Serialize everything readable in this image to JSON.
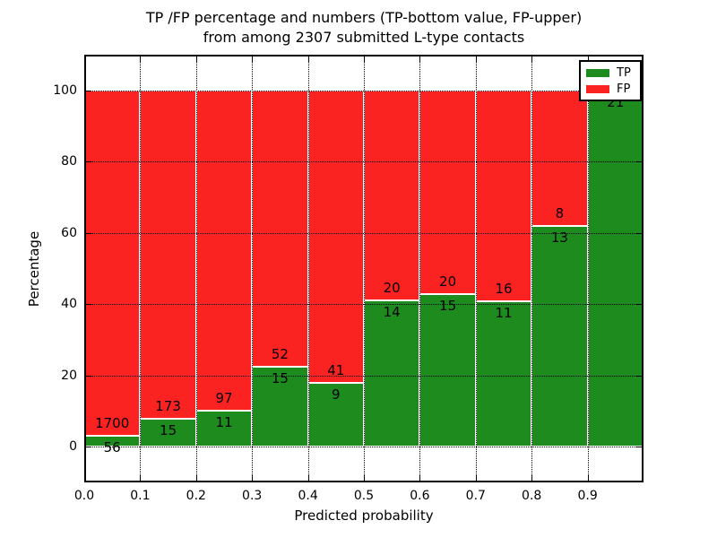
{
  "chart_data": {
    "type": "bar",
    "stacked": true,
    "title_line1": "TP /FP percentage and numbers (TP-bottom value, FP-upper)",
    "title_line2": "from among 2307 submitted L-type contacts",
    "xlabel": "Predicted probability",
    "ylabel": "Percentage",
    "total_contacts": 2307,
    "xlim": [
      0.0,
      1.0
    ],
    "ylim": [
      -10,
      110
    ],
    "grid": "dotted black, horizontal at y ticks and vertical at x ticks, drawn above bars",
    "x_ticks": [
      {
        "label": "0.0",
        "value": 0.0
      },
      {
        "label": "0.1",
        "value": 0.1
      },
      {
        "label": "0.2",
        "value": 0.2
      },
      {
        "label": "0.3",
        "value": 0.3
      },
      {
        "label": "0.4",
        "value": 0.4
      },
      {
        "label": "0.5",
        "value": 0.5
      },
      {
        "label": "0.6",
        "value": 0.6
      },
      {
        "label": "0.7",
        "value": 0.7
      },
      {
        "label": "0.8",
        "value": 0.8
      },
      {
        "label": "0.9",
        "value": 0.9
      }
    ],
    "y_ticks": [
      {
        "label": "0",
        "value": 0
      },
      {
        "label": "20",
        "value": 20
      },
      {
        "label": "40",
        "value": 40
      },
      {
        "label": "60",
        "value": 60
      },
      {
        "label": "80",
        "value": 80
      },
      {
        "label": "100",
        "value": 100
      }
    ],
    "legend": {
      "position": "upper right",
      "entries": [
        {
          "label": "TP",
          "color": "#1e8b1e"
        },
        {
          "label": "FP",
          "color": "#fb2222"
        }
      ]
    },
    "bins": [
      {
        "range": [
          0.0,
          0.1
        ],
        "tp": 56,
        "fp": 1700,
        "tp_percent": 3.19
      },
      {
        "range": [
          0.1,
          0.2
        ],
        "tp": 15,
        "fp": 173,
        "tp_percent": 7.98
      },
      {
        "range": [
          0.2,
          0.3
        ],
        "tp": 11,
        "fp": 97,
        "tp_percent": 10.19
      },
      {
        "range": [
          0.3,
          0.4
        ],
        "tp": 15,
        "fp": 52,
        "tp_percent": 22.39
      },
      {
        "range": [
          0.4,
          0.5
        ],
        "tp": 9,
        "fp": 41,
        "tp_percent": 18.0
      },
      {
        "range": [
          0.5,
          0.6
        ],
        "tp": 14,
        "fp": 20,
        "tp_percent": 41.18
      },
      {
        "range": [
          0.6,
          0.7
        ],
        "tp": 15,
        "fp": 20,
        "tp_percent": 42.86
      },
      {
        "range": [
          0.7,
          0.8
        ],
        "tp": 11,
        "fp": 16,
        "tp_percent": 40.74
      },
      {
        "range": [
          0.8,
          0.9
        ],
        "tp": 13,
        "fp": 8,
        "tp_percent": 61.9
      },
      {
        "range": [
          0.9,
          1.0
        ],
        "tp": 21,
        "fp": 0,
        "tp_percent": 100.0
      }
    ],
    "colors": {
      "tp": "#1e8b1e",
      "fp": "#fb2222",
      "bar_edge": "#ffffff",
      "grid": "#000000",
      "background": "#ffffff",
      "text": "#000000"
    }
  }
}
